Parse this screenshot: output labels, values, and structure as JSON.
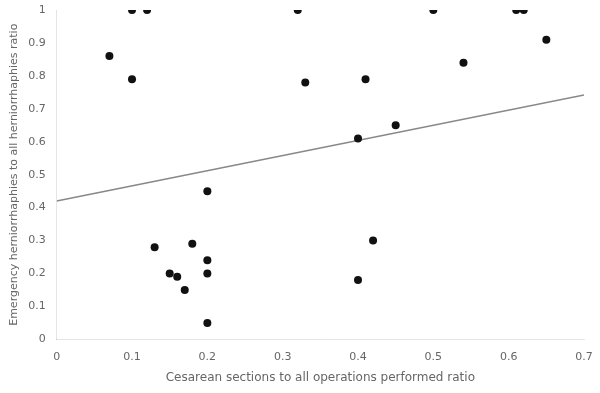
{
  "chart_data": {
    "type": "scatter",
    "xlabel": "Cesarean sections to all operations performed ratio",
    "ylabel": "Emergency herniorrhaphies to all herniorrhaphies ratio",
    "xlim": [
      0,
      0.7
    ],
    "ylim": [
      0,
      1.0
    ],
    "xticks": [
      0,
      0.1,
      0.2,
      0.3,
      0.4,
      0.5,
      0.6,
      0.7
    ],
    "yticks": [
      0,
      0.1,
      0.2,
      0.3,
      0.4,
      0.5,
      0.6,
      0.7,
      0.8,
      0.9,
      1
    ],
    "grid": false,
    "series": [
      {
        "type": "scatter",
        "color": "#111111",
        "marker": "circle",
        "x": [
          0.07,
          0.1,
          0.12,
          0.1,
          0.13,
          0.15,
          0.16,
          0.17,
          0.18,
          0.2,
          0.2,
          0.2,
          0.2,
          0.32,
          0.33,
          0.4,
          0.4,
          0.41,
          0.42,
          0.45,
          0.5,
          0.54,
          0.61,
          0.62,
          0.65
        ],
        "values": [
          0.86,
          1.0,
          1.0,
          0.79,
          0.28,
          0.2,
          0.19,
          0.15,
          0.29,
          0.45,
          0.24,
          0.2,
          0.05,
          1.0,
          0.78,
          0.61,
          0.18,
          0.79,
          0.3,
          0.65,
          1.0,
          0.84,
          1.0,
          1.0,
          0.91
        ]
      },
      {
        "type": "line",
        "color": "#888888",
        "line_style": "solid",
        "x": [
          0.0,
          0.7
        ],
        "values": [
          0.42,
          0.742
        ]
      }
    ]
  }
}
